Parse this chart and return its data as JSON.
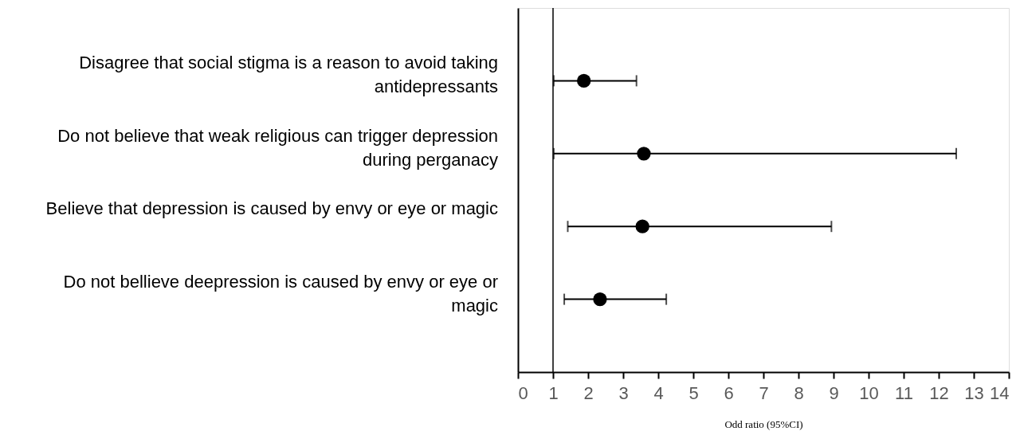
{
  "chart_data": {
    "type": "scatter",
    "orientation": "horizontal",
    "xlabel": "Odd ratio (95%CI)",
    "categories": [
      "Disagree that social stigma is a reason to avoid taking antidepressants",
      "Do not believe that weak religious can trigger depression during perganacy",
      "Believe that depression is caused by envy or eye or magic",
      "Do not bellieve deepression is caused by envy or eye or magic"
    ],
    "series": [
      {
        "color": "#000000",
        "values": [
          1.88,
          3.59,
          3.55,
          2.34
        ],
        "errors": [
          [
            1.02,
            3.38
          ],
          [
            1.02,
            12.5
          ],
          [
            1.42,
            8.94
          ],
          [
            1.32,
            4.23
          ]
        ]
      }
    ],
    "xlim": [
      0,
      14
    ],
    "xticks": [
      0,
      1,
      2,
      3,
      4,
      5,
      6,
      7,
      8,
      9,
      10,
      11,
      12,
      13,
      14
    ],
    "ref_lines": [
      {
        "axis": "x",
        "value": 1,
        "color": "#000000"
      }
    ],
    "marker": "circle"
  }
}
